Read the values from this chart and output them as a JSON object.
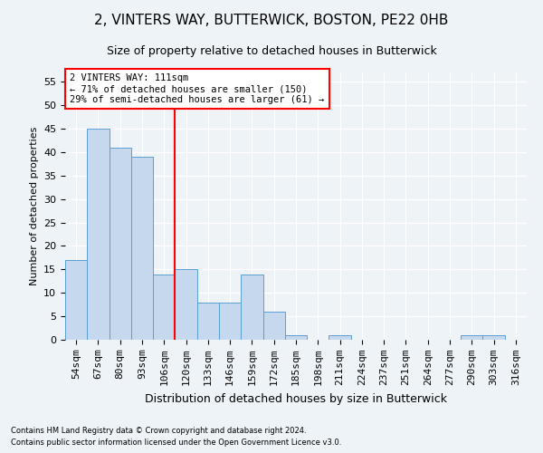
{
  "title": "2, VINTERS WAY, BUTTERWICK, BOSTON, PE22 0HB",
  "subtitle": "Size of property relative to detached houses in Butterwick",
  "xlabel": "Distribution of detached houses by size in Butterwick",
  "ylabel": "Number of detached properties",
  "categories": [
    "54sqm",
    "67sqm",
    "80sqm",
    "93sqm",
    "106sqm",
    "120sqm",
    "133sqm",
    "146sqm",
    "159sqm",
    "172sqm",
    "185sqm",
    "198sqm",
    "211sqm",
    "224sqm",
    "237sqm",
    "251sqm",
    "264sqm",
    "277sqm",
    "290sqm",
    "303sqm",
    "316sqm"
  ],
  "values": [
    17,
    45,
    41,
    39,
    14,
    15,
    8,
    8,
    14,
    6,
    1,
    0,
    1,
    0,
    0,
    0,
    0,
    0,
    1,
    1,
    0
  ],
  "bar_color": "#c5d8ed",
  "bar_edge_color": "#5a9fd4",
  "vline_x": 4.5,
  "vline_color": "red",
  "ylim": [
    0,
    57
  ],
  "yticks": [
    0,
    5,
    10,
    15,
    20,
    25,
    30,
    35,
    40,
    45,
    50,
    55
  ],
  "annotation_text": "2 VINTERS WAY: 111sqm\n← 71% of detached houses are smaller (150)\n29% of semi-detached houses are larger (61) →",
  "annotation_box_color": "#ffffff",
  "annotation_box_edgecolor": "red",
  "footer_line1": "Contains HM Land Registry data © Crown copyright and database right 2024.",
  "footer_line2": "Contains public sector information licensed under the Open Government Licence v3.0.",
  "background_color": "#eef3f8",
  "grid_color": "#ffffff",
  "title_fontsize": 11,
  "subtitle_fontsize": 9,
  "ylabel_fontsize": 8,
  "xlabel_fontsize": 9,
  "tick_fontsize": 8,
  "annot_fontsize": 7.5,
  "footer_fontsize": 6
}
